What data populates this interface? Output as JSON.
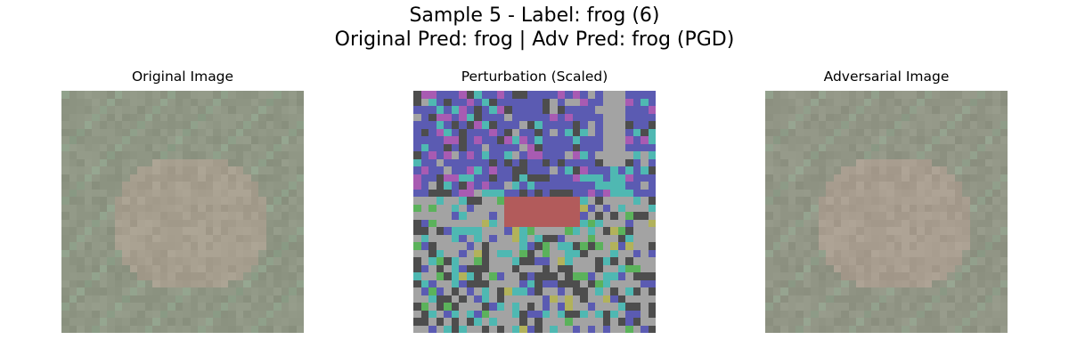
{
  "figure": {
    "suptitle_line1": "Sample 5 - Label: frog (6)",
    "suptitle_line2": "Original Pred: frog | Adv Pred: frog (PGD)"
  },
  "panels": [
    {
      "title": "Original Image"
    },
    {
      "title": "Perturbation (Scaled)"
    },
    {
      "title": "Adversarial Image"
    }
  ],
  "colors": {
    "background": "#ffffff",
    "image_base": "#8f9684",
    "image_frog": "#a69e8e",
    "image_grass": "#8fa08a",
    "perturbation_palette": [
      "#5b5bb2",
      "#a3a3a3",
      "#4d4d4d",
      "#4fb8b2",
      "#a85bb2",
      "#b25b5b",
      "#5bb25b",
      "#b2b25b"
    ]
  }
}
